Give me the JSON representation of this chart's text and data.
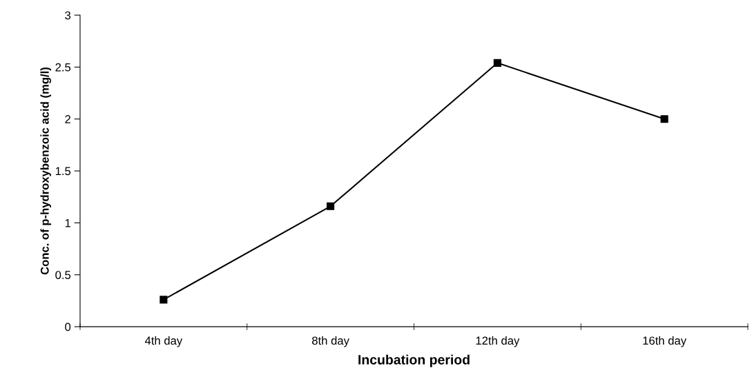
{
  "chart_data": {
    "type": "line",
    "xlabel": "Incubation period",
    "ylabel": "Conc. of p-hydroxybenzoic acid (mg/l)",
    "categories": [
      "4th day",
      "8th day",
      "12th day",
      "16th day"
    ],
    "series": [
      {
        "color": "#000000",
        "values": [
          0.26,
          1.16,
          2.54,
          2.0
        ]
      }
    ],
    "ylim": [
      0,
      3
    ],
    "yticks": [
      0,
      0.5,
      1,
      1.5,
      2,
      2.5,
      3
    ],
    "grid": false,
    "legend": false,
    "marker": "square",
    "line_style": "solid"
  }
}
